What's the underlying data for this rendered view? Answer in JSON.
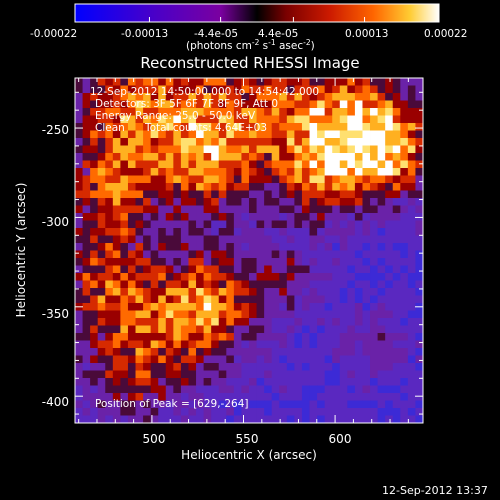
{
  "colorbar": {
    "tick_labels": [
      "-0.00022",
      "-0.00013",
      "-4.4e-05",
      "4.4e-05",
      "0.00013",
      "0.00022"
    ],
    "tick_values": [
      -0.00022,
      -0.00013,
      -4.4e-05,
      4.4e-05,
      0.00013,
      0.00022
    ],
    "range": [
      -0.00022,
      0.00022
    ],
    "units_prefix": "(photons cm",
    "units_mid1": " s",
    "units_mid2": " asec",
    "units_suffix": ")",
    "sup1": "-2",
    "sup2": "-1",
    "sup3": "-2",
    "gradient_colors": [
      "#0000ff",
      "#4a00c8",
      "#7a00a0",
      "#000000",
      "#7a0000",
      "#cc1a00",
      "#ff6600",
      "#ffcc33",
      "#ffffff"
    ]
  },
  "chart_data": {
    "type": "heatmap",
    "title": "Reconstructed RHESSI Image",
    "xlabel": "Heliocentric X (arcsec)",
    "ylabel": "Heliocentric Y (arcsec)",
    "xlim": [
      458,
      648
    ],
    "ylim": [
      -415,
      -222
    ],
    "xticks": [
      500,
      550,
      600
    ],
    "yticks": [
      -250,
      -300,
      -350,
      -400
    ],
    "color_scale": "red-temperature with blue negative",
    "cells_x": 46,
    "cells_y": 46,
    "peak_position": [
      629,
      -264
    ]
  },
  "annotations": {
    "time_range": "12-Sep-2012 14:50:00.000 to 14:54:42.000",
    "detectors": "Detectors: 3F 5F 6F 7F 8F 9F, Att 0",
    "energy_range": "Energy Range: 25.0 - 50.0 keV",
    "clean_label": "Clean",
    "total_counts": "Total counts: 4.64E+03",
    "peak_label": "Position of Peak = [629,-264]"
  },
  "footer": {
    "timestamp": "12-Sep-2012 13:37"
  }
}
